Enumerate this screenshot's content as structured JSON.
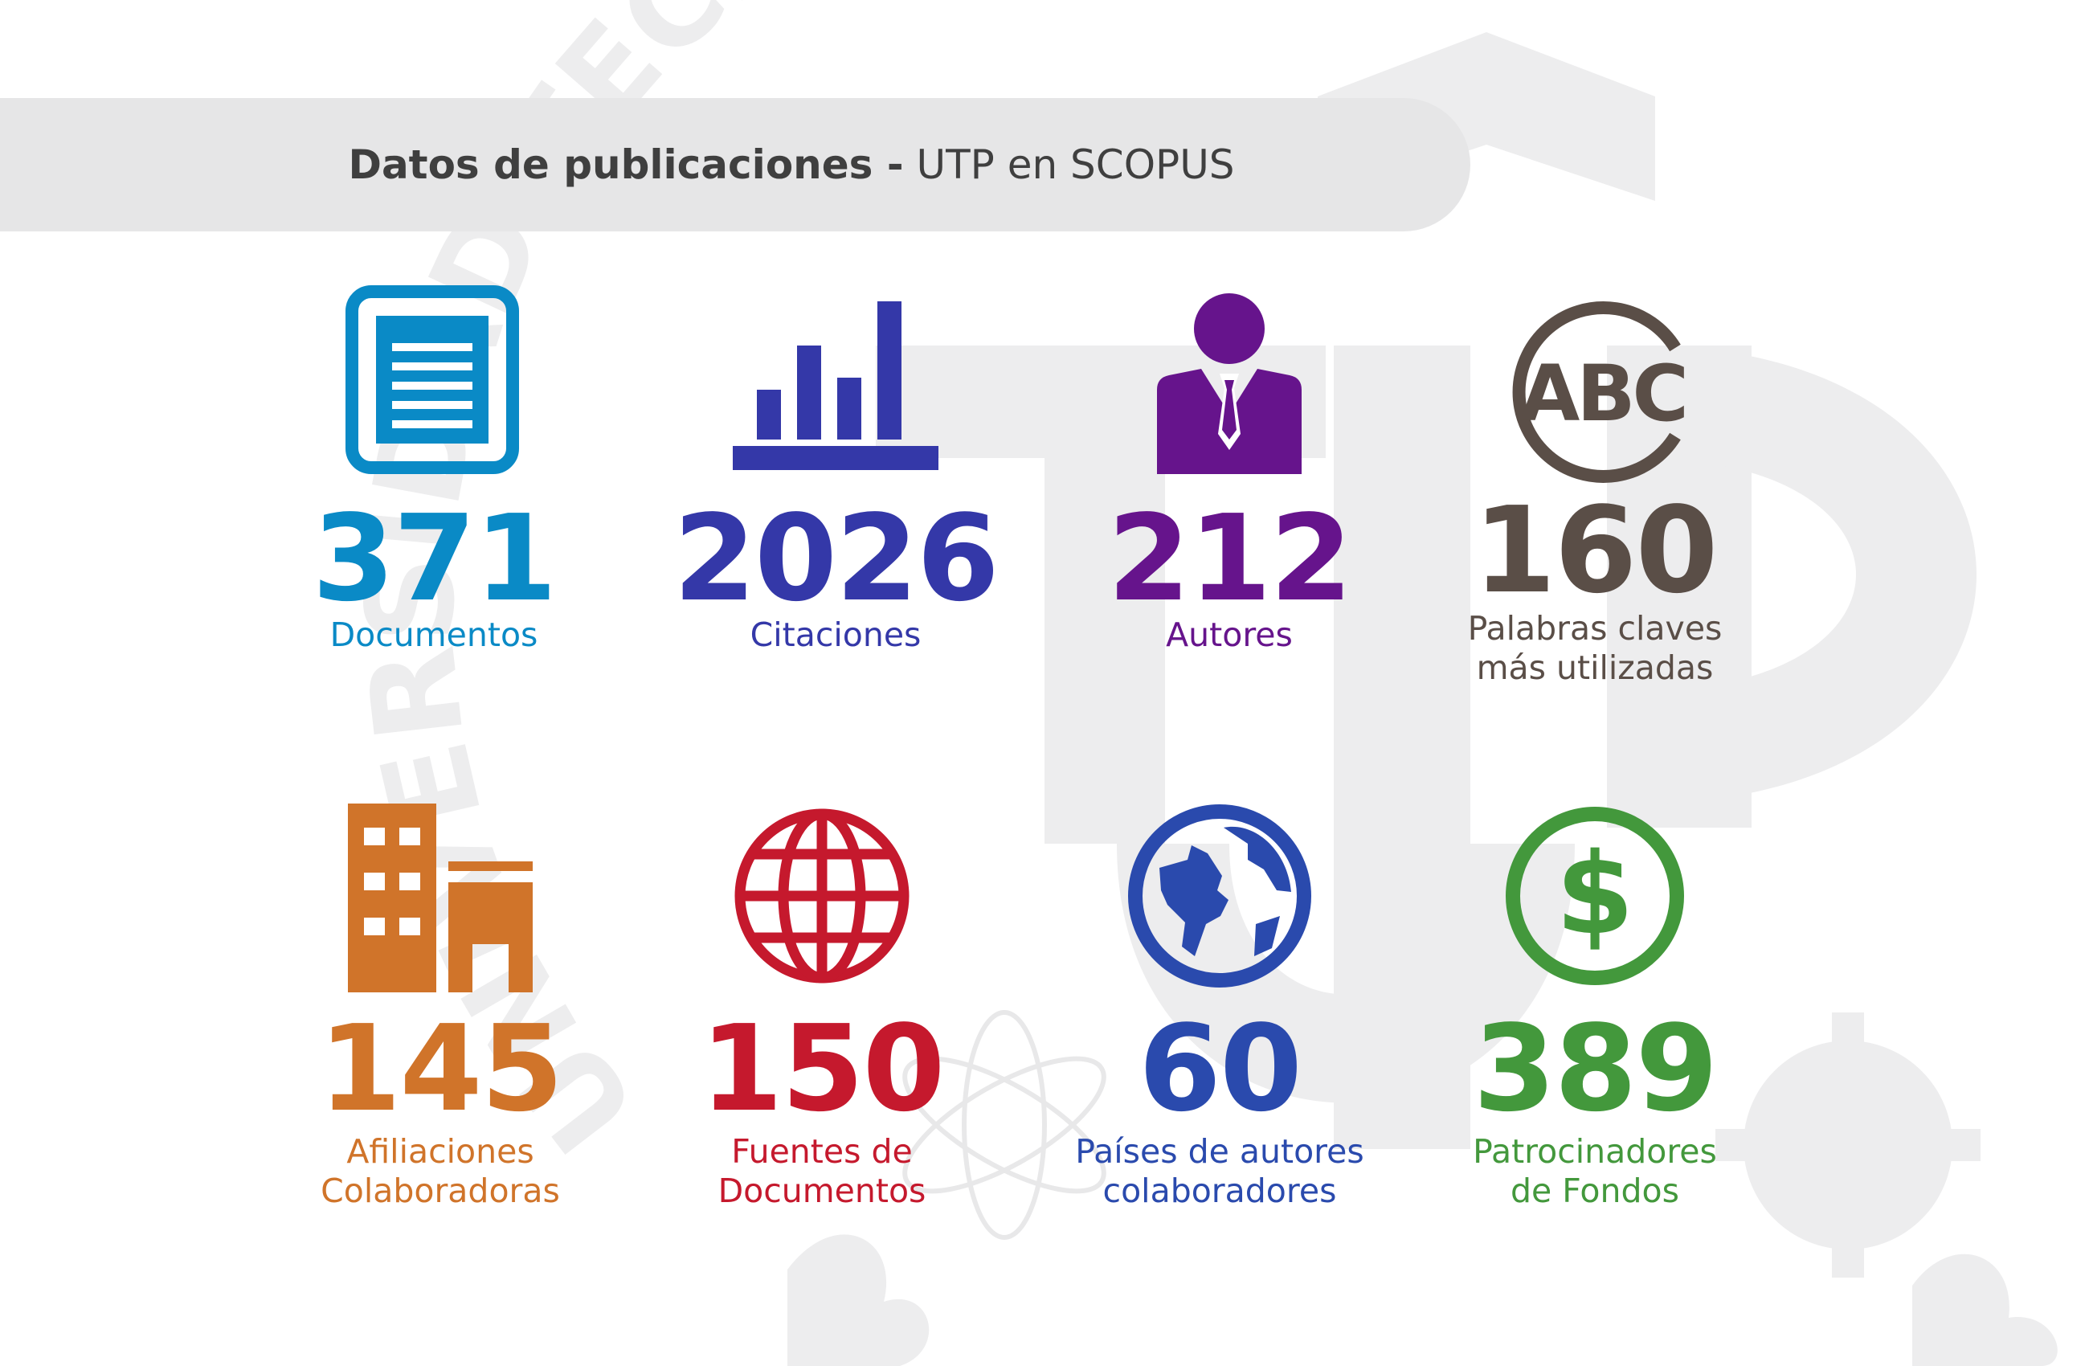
{
  "header": {
    "title_bold": "Datos de publicaciones -",
    "title_rest": "UTP en SCOPUS"
  },
  "colors": {
    "documentos": "#0a8ac6",
    "citaciones": "#3438a8",
    "autores": "#66148c",
    "palabras": "#5a4e47",
    "afiliaciones": "#d0742a",
    "fuentes": "#c5192d",
    "paises": "#2a4aad",
    "patrocinadores": "#43983c",
    "title_bar": "#e6e6e7",
    "watermark": "#ededee"
  },
  "stats": [
    {
      "id": "documentos",
      "icon": "document-icon",
      "value": "371",
      "label_line1": "Documentos",
      "label_line2": ""
    },
    {
      "id": "citaciones",
      "icon": "bar-chart-icon",
      "value": "2026",
      "label_line1": "Citaciones",
      "label_line2": ""
    },
    {
      "id": "autores",
      "icon": "person-icon",
      "value": "212",
      "label_line1": "Autores",
      "label_line2": ""
    },
    {
      "id": "palabras",
      "icon": "abc-icon",
      "value": "160",
      "label_line1": "Palabras claves",
      "label_line2": "más utilizadas"
    },
    {
      "id": "afiliaciones",
      "icon": "building-icon",
      "value": "145",
      "label_line1": "Afiliaciones",
      "label_line2": "Colaboradoras"
    },
    {
      "id": "fuentes",
      "icon": "globe-grid-icon",
      "value": "150",
      "label_line1": "Fuentes de",
      "label_line2": "Documentos"
    },
    {
      "id": "paises",
      "icon": "earth-icon",
      "value": "60",
      "label_line1": "Países de autores",
      "label_line2": "colaboradores"
    },
    {
      "id": "patrocinadores",
      "icon": "dollar-icon",
      "value": "389",
      "label_line1": "Patrocinadores",
      "label_line2": "de Fondos"
    }
  ],
  "watermark": {
    "seal_text": "UNIVERSIDAD TECNOLÓGICA",
    "monogram": "UTP"
  }
}
